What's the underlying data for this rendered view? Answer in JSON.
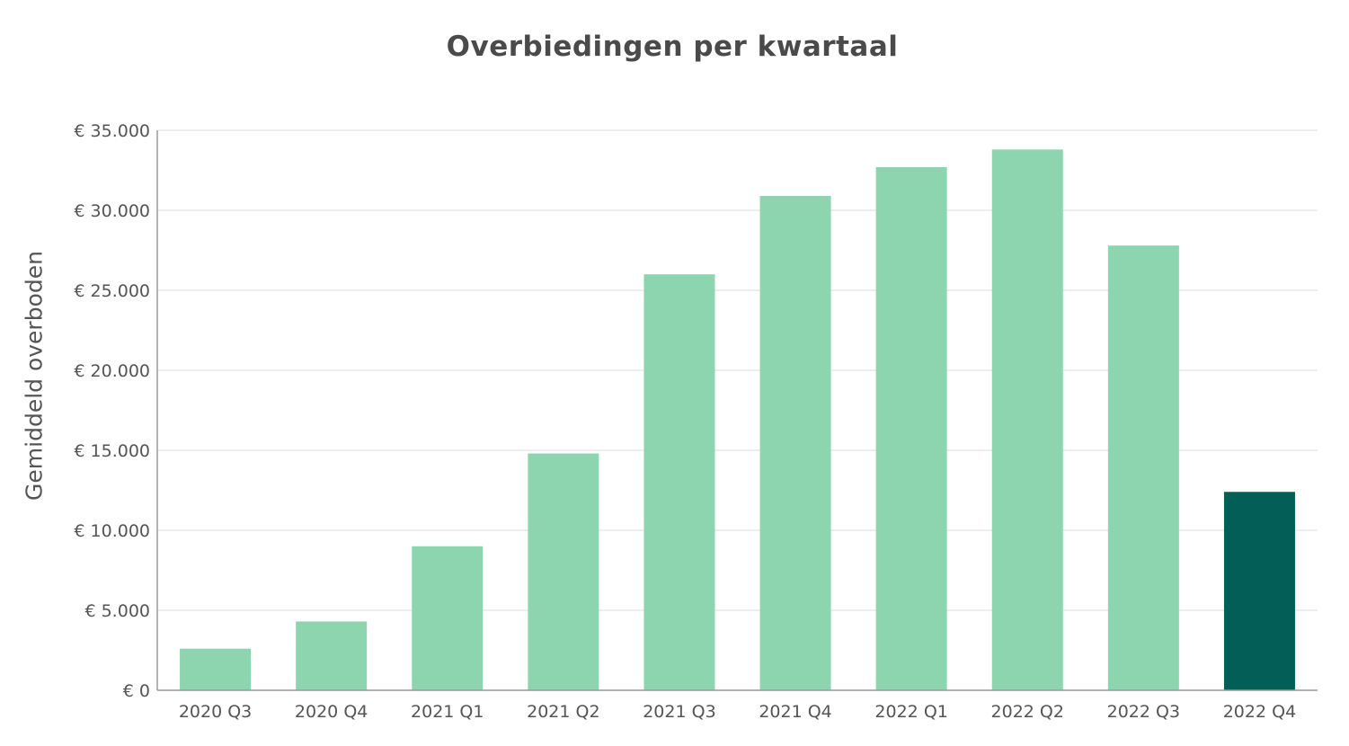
{
  "chart_data": {
    "type": "bar",
    "title": "Overbiedingen per kwartaal",
    "xlabel": "",
    "ylabel": "Gemiddeld overboden",
    "categories": [
      "2020 Q3",
      "2020 Q4",
      "2021 Q1",
      "2021 Q2",
      "2021 Q3",
      "2021 Q4",
      "2022 Q1",
      "2022 Q2",
      "2022 Q3",
      "2022 Q4"
    ],
    "values": [
      2600,
      4300,
      9000,
      14800,
      26000,
      30900,
      32700,
      33800,
      27800,
      12400
    ],
    "ylim": [
      0,
      35000
    ],
    "yticks": [
      0,
      5000,
      10000,
      15000,
      20000,
      25000,
      30000,
      35000
    ],
    "ytick_labels": [
      "€ 0",
      "€ 5.000",
      "€ 10.000",
      "€ 15.000",
      "€ 20.000",
      "€ 25.000",
      "€ 30.000",
      "€ 35.000"
    ],
    "grid": true,
    "legend": "none",
    "colors": {
      "bar": "#8dd5ae",
      "highlight_bar": "#035e58",
      "highlight_index": 9,
      "grid": "#dcdcdc",
      "axis": "#9a9a9a",
      "text": "#555555",
      "title": "#4a4a4a"
    }
  }
}
